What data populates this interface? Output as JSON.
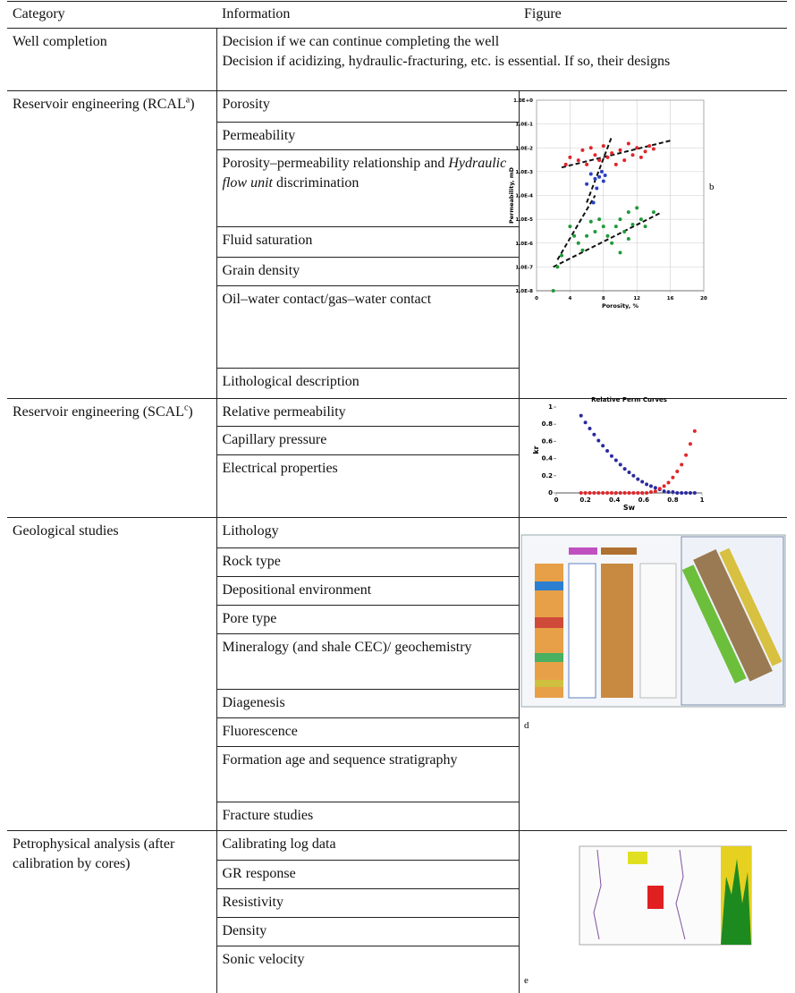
{
  "table": {
    "header": [
      "Category",
      "Information",
      "Figure"
    ],
    "groups": [
      {
        "category": {
          "text": "Well completion"
        },
        "lines": [
          "Decision if we can continue completing the well",
          "Decision if acidizing, hydraulic-fracturing, etc. is essential. If so, their designs"
        ]
      },
      {
        "category": {
          "text": "Reservoir engineering (RCAL",
          "sup": "a",
          "after": ")"
        },
        "items": [
          [
            {
              "text": "Porosity"
            }
          ],
          [
            {
              "text": "Permeability"
            }
          ],
          [
            {
              "text": "Porosity–permeability relationship and "
            },
            {
              "text": "Hydraulic flow unit",
              "italic": true
            },
            {
              "text": " discrimination"
            }
          ],
          [
            {
              "text": "Fluid saturation"
            }
          ],
          [
            {
              "text": "Grain density"
            }
          ],
          [
            {
              "text": "Oil–water contact/gas–water contact"
            }
          ],
          [
            {
              "text": "Lithological description"
            }
          ]
        ],
        "figure_label": "b"
      },
      {
        "category": {
          "text": "Reservoir engineering (SCAL",
          "sup": "c",
          "after": ")"
        },
        "items": [
          [
            {
              "text": "Relative permeability"
            }
          ],
          [
            {
              "text": "Capillary pressure"
            }
          ],
          [
            {
              "text": "Electrical properties"
            }
          ]
        ]
      },
      {
        "category": {
          "text": "Geological studies"
        },
        "items": [
          [
            {
              "text": "Lithology"
            }
          ],
          [
            {
              "text": "Rock type"
            }
          ],
          [
            {
              "text": "Depositional environment"
            }
          ],
          [
            {
              "text": "Pore type"
            }
          ],
          [
            {
              "text": "Mineralogy (and shale CEC)/ geochemistry"
            }
          ],
          [
            {
              "text": "Diagenesis"
            }
          ],
          [
            {
              "text": "Fluorescence"
            }
          ],
          [
            {
              "text": "Formation age and sequence stratigraphy"
            }
          ],
          [
            {
              "text": "Fracture studies"
            }
          ]
        ],
        "figure_label": "d"
      },
      {
        "category": {
          "text": "Petrophysical analysis (after calibration by cores)"
        },
        "items": [
          [
            {
              "text": "Calibrating log data"
            }
          ],
          [
            {
              "text": "GR response"
            }
          ],
          [
            {
              "text": "Resistivity"
            }
          ],
          [
            {
              "text": "Density"
            }
          ],
          [
            {
              "text": "Sonic velocity"
            }
          ]
        ],
        "figure_label": "e"
      }
    ]
  },
  "figures": [
    {
      "chart_data": {
        "type": "scatter",
        "xlabel": "Porosity, %",
        "ylabel": "Permeability, mD",
        "log_y": true,
        "xlim": [
          0,
          20
        ],
        "xticks": [
          0,
          4,
          8,
          12,
          16,
          20
        ],
        "ylim": [
          1e-08,
          1
        ],
        "yticks": [
          {
            "value": 1,
            "label": "1.0E+0"
          },
          {
            "value": 0.1,
            "label": "1.0E-1"
          },
          {
            "value": 0.01,
            "label": "1.0E-2"
          },
          {
            "value": 0.001,
            "label": "1.0E-3"
          },
          {
            "value": 0.0001,
            "label": "1.0E-4"
          },
          {
            "value": 1e-05,
            "label": "1.0E-5"
          },
          {
            "value": 1e-06,
            "label": "1.0E-6"
          },
          {
            "value": 1e-07,
            "label": "1.0E-7"
          },
          {
            "value": 1e-08,
            "label": "1.0E-8"
          }
        ],
        "grid": true,
        "series": [
          {
            "color": "#e0262a",
            "x": [
              3.5,
              4,
              5,
              5.5,
              6,
              6.5,
              7,
              7.5,
              8,
              8.5,
              9,
              9.5,
              10,
              10.5,
              11,
              11.5,
              12,
              12.5,
              13,
              13.5,
              14
            ],
            "values": [
              0.002,
              0.004,
              0.003,
              0.008,
              0.002,
              0.01,
              0.005,
              0.003,
              0.012,
              0.004,
              0.006,
              0.002,
              0.008,
              0.003,
              0.015,
              0.005,
              0.01,
              0.004,
              0.007,
              0.012,
              0.009
            ]
          },
          {
            "color": "#2a3fc4",
            "x": [
              6,
              6.5,
              6.8,
              7,
              7.2,
              7.5,
              7.8,
              8,
              8.2
            ],
            "values": [
              0.0003,
              0.0008,
              5e-05,
              0.0005,
              0.0002,
              0.0006,
              0.001,
              0.0004,
              0.0007
            ]
          },
          {
            "color": "#1f9a3a",
            "x": [
              2,
              2.5,
              3,
              4,
              4.5,
              5,
              5.5,
              6,
              6.5,
              7,
              7.5,
              8,
              8.5,
              9,
              9.5,
              10,
              10,
              10.5,
              11,
              11,
              11.5,
              12,
              12.5,
              13,
              14
            ],
            "values": [
              1e-08,
              1e-07,
              3e-07,
              5e-06,
              2e-06,
              1e-06,
              5e-07,
              2e-06,
              8e-06,
              3e-06,
              1e-05,
              5e-06,
              2e-06,
              1e-06,
              5e-06,
              1e-05,
              4e-07,
              3e-06,
              2e-05,
              1.5e-06,
              6e-06,
              3e-05,
              1e-05,
              5e-06,
              2e-05
            ]
          }
        ],
        "trend_lines": [
          {
            "x": [
              3,
              16
            ],
            "values": [
              0.0015,
              0.02
            ]
          },
          {
            "x": [
              6,
              9
            ],
            "values": [
              5e-05,
              0.03
            ]
          },
          {
            "x": [
              2,
              15
            ],
            "values": [
              1e-07,
              2e-05
            ]
          },
          {
            "x": [
              2.5,
              7
            ],
            "values": [
              2e-07,
              0.0001
            ]
          }
        ]
      }
    },
    {
      "chart_data": {
        "type": "scatter",
        "title": "Relative Perm Curves",
        "xlabel": "Sw",
        "ylabel": "kr",
        "xlim": [
          0,
          1
        ],
        "xticks": [
          0,
          0.2,
          0.4,
          0.6,
          0.8,
          1
        ],
        "ylim": [
          0,
          1
        ],
        "yticks": [
          0,
          0.2,
          0.4,
          0.6,
          0.8,
          1
        ],
        "x": [
          0.17,
          0.2,
          0.23,
          0.26,
          0.29,
          0.32,
          0.35,
          0.38,
          0.41,
          0.44,
          0.47,
          0.5,
          0.53,
          0.56,
          0.59,
          0.62,
          0.65,
          0.68,
          0.71,
          0.74,
          0.77,
          0.8,
          0.83,
          0.86,
          0.89,
          0.92,
          0.95
        ],
        "series": [
          {
            "color": "#2a2aa0",
            "values": [
              0.9,
              0.82,
              0.75,
              0.68,
              0.61,
              0.55,
              0.49,
              0.43,
              0.38,
              0.33,
              0.28,
              0.24,
              0.2,
              0.16,
              0.13,
              0.1,
              0.08,
              0.06,
              0.04,
              0.02,
              0.01,
              0.01,
              0,
              0,
              0,
              0,
              0
            ]
          },
          {
            "color": "#e0262a",
            "values": [
              0,
              0,
              0,
              0,
              0,
              0,
              0,
              0,
              0,
              0,
              0,
              0,
              0,
              0,
              0,
              0,
              0.01,
              0.02,
              0.05,
              0.08,
              0.12,
              0.18,
              0.25,
              0.33,
              0.44,
              0.57,
              0.72
            ]
          }
        ]
      }
    }
  ]
}
